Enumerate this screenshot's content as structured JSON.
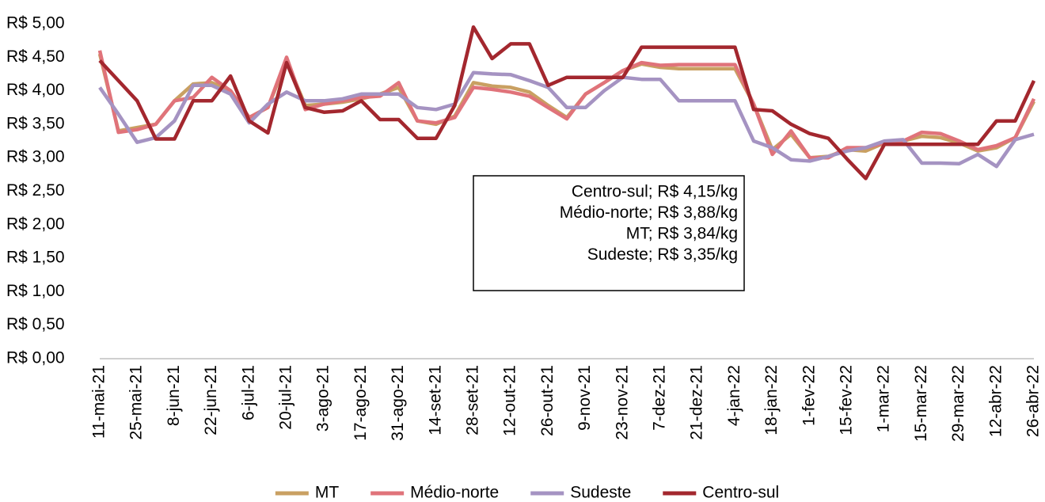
{
  "chart_data": {
    "type": "line",
    "categories": [
      "11-mai-21",
      null,
      "25-mai-21",
      null,
      "8-jun-21",
      null,
      "22-jun-21",
      null,
      "6-jul-21",
      null,
      "20-jul-21",
      null,
      "3-ago-21",
      null,
      "17-ago-21",
      null,
      "31-ago-21",
      null,
      "14-set-21",
      null,
      "28-set-21",
      null,
      "12-out-21",
      null,
      "26-out-21",
      null,
      "9-nov-21",
      null,
      "23-nov-21",
      null,
      "7-dez-21",
      null,
      "21-dez-21",
      null,
      "4-jan-22",
      null,
      "18-jan-22",
      null,
      "1-fev-22",
      null,
      "15-fev-22",
      null,
      "1-mar-22",
      null,
      "15-mar-22",
      null,
      "29-mar-22",
      null,
      "12-abr-22",
      null,
      "26-abr-22"
    ],
    "series": [
      {
        "name": "MT",
        "color": "#c9a062",
        "values": [
          4.55,
          3.4,
          3.45,
          3.5,
          3.85,
          4.1,
          4.12,
          4.0,
          3.6,
          3.75,
          4.45,
          3.78,
          3.8,
          3.83,
          3.88,
          3.95,
          4.05,
          3.55,
          3.5,
          3.62,
          4.12,
          4.07,
          4.05,
          3.98,
          3.78,
          3.6,
          3.95,
          4.12,
          4.3,
          4.4,
          4.35,
          4.33,
          4.33,
          4.33,
          4.33,
          3.8,
          3.12,
          3.35,
          3.0,
          3.02,
          3.12,
          3.1,
          3.22,
          3.25,
          3.32,
          3.3,
          3.22,
          3.1,
          3.15,
          3.3,
          3.84
        ]
      },
      {
        "name": "Médio-norte",
        "color": "#e0737a",
        "values": [
          4.6,
          3.38,
          3.42,
          3.5,
          3.85,
          3.9,
          4.2,
          4.0,
          3.6,
          3.75,
          4.5,
          3.72,
          3.8,
          3.85,
          3.9,
          3.92,
          4.12,
          3.55,
          3.52,
          3.6,
          4.05,
          4.02,
          3.98,
          3.92,
          3.75,
          3.58,
          3.95,
          4.12,
          4.3,
          4.42,
          4.38,
          4.39,
          4.39,
          4.39,
          4.39,
          3.8,
          3.05,
          3.4,
          3.0,
          3.0,
          3.15,
          3.15,
          3.22,
          3.25,
          3.38,
          3.36,
          3.25,
          3.12,
          3.18,
          3.3,
          3.88
        ]
      },
      {
        "name": "Sudeste",
        "color": "#a593c2",
        "values": [
          4.05,
          3.65,
          3.23,
          3.3,
          3.55,
          4.08,
          4.08,
          3.95,
          3.52,
          3.8,
          3.98,
          3.85,
          3.85,
          3.88,
          3.95,
          3.95,
          3.95,
          3.75,
          3.72,
          3.8,
          4.27,
          4.25,
          4.24,
          4.15,
          4.05,
          3.75,
          3.75,
          4.0,
          4.2,
          4.17,
          4.17,
          3.85,
          3.85,
          3.85,
          3.85,
          3.25,
          3.15,
          2.97,
          2.95,
          3.02,
          3.1,
          3.15,
          3.25,
          3.27,
          2.92,
          2.92,
          2.91,
          3.05,
          2.87,
          3.27,
          3.35
        ]
      },
      {
        "name": "Centro-sul",
        "color": "#a3272e",
        "values": [
          4.45,
          4.15,
          3.85,
          3.28,
          3.28,
          3.85,
          3.85,
          4.22,
          3.55,
          3.37,
          4.42,
          3.75,
          3.68,
          3.7,
          3.85,
          3.57,
          3.57,
          3.29,
          3.29,
          3.78,
          4.95,
          4.48,
          4.7,
          4.7,
          4.08,
          4.2,
          4.2,
          4.2,
          4.2,
          4.65,
          4.65,
          4.65,
          4.65,
          4.65,
          4.65,
          3.72,
          3.7,
          3.5,
          3.36,
          3.29,
          2.98,
          2.69,
          3.2,
          3.2,
          3.2,
          3.2,
          3.2,
          3.2,
          3.55,
          3.55,
          4.15
        ]
      }
    ],
    "ylim": [
      0,
      5
    ],
    "yticks": [
      {
        "value": 0,
        "label": "R$ 0,00"
      },
      {
        "value": 0.5,
        "label": "R$ 0,50"
      },
      {
        "value": 1,
        "label": "R$ 1,00"
      },
      {
        "value": 1.5,
        "label": "R$ 1,50"
      },
      {
        "value": 2,
        "label": "R$ 2,00"
      },
      {
        "value": 2.5,
        "label": "R$ 2,50"
      },
      {
        "value": 3,
        "label": "R$ 3,00"
      },
      {
        "value": 3.5,
        "label": "R$ 3,50"
      },
      {
        "value": 4,
        "label": "R$ 4,00"
      },
      {
        "value": 4.5,
        "label": "R$ 4,50"
      },
      {
        "value": 5,
        "label": "R$ 5,00"
      }
    ],
    "annotations": [
      "Centro-sul; R$ 4,15/kg",
      "Médio-norte; R$ 3,88/kg",
      "MT; R$ 3,84/kg",
      "Sudeste; R$ 3,35/kg"
    ],
    "legend": "bottom"
  }
}
